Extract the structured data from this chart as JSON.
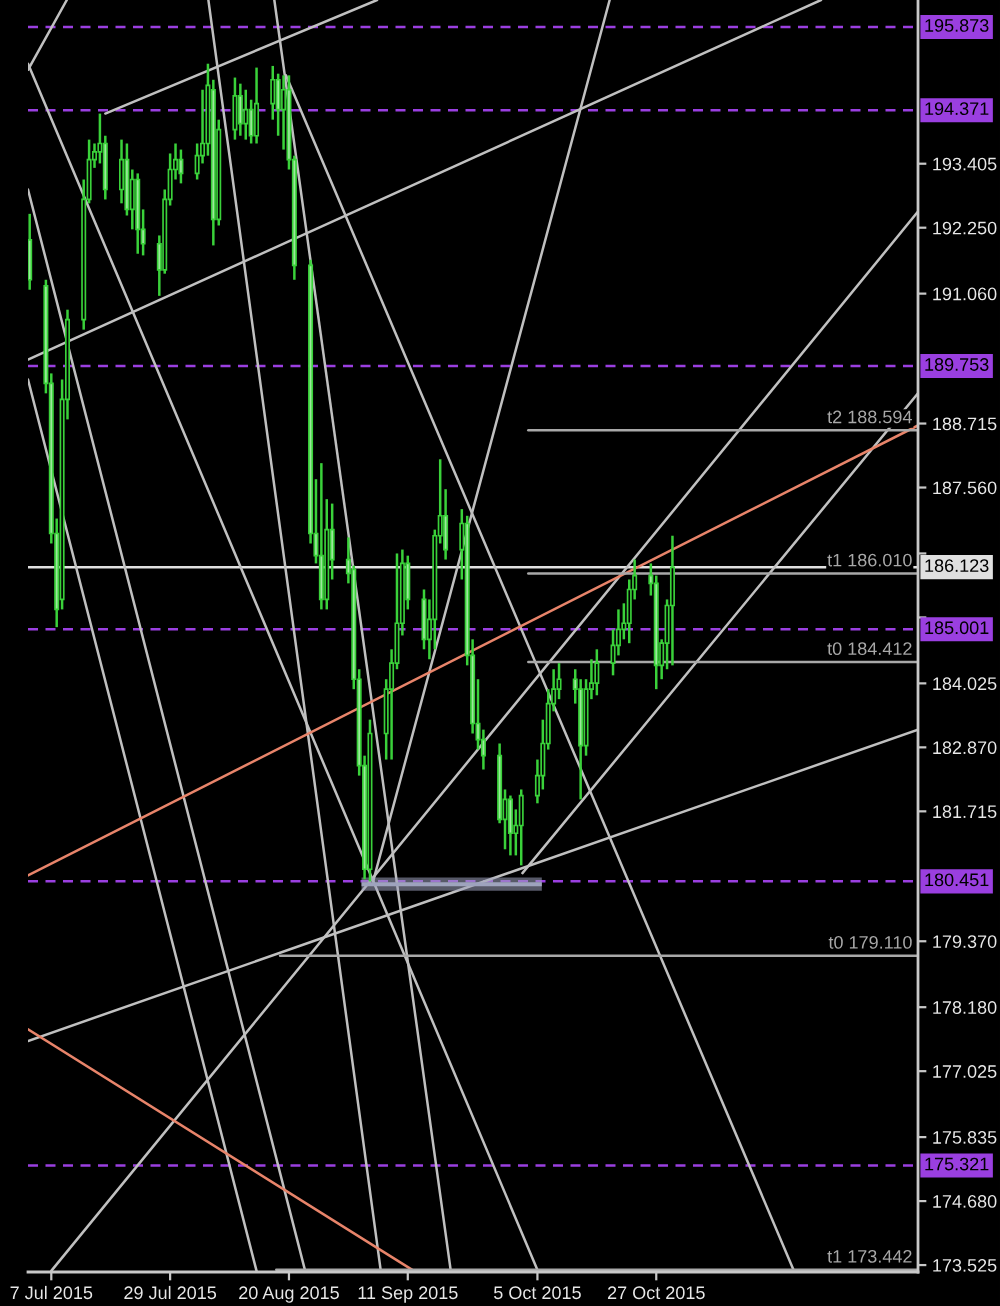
{
  "chart_data": {
    "type": "candlestick",
    "color": "#3ad13a",
    "x": [
      "2015-07-03",
      "2015-07-06",
      "2015-07-07",
      "2015-07-08",
      "2015-07-09",
      "2015-07-10",
      "2015-07-13",
      "2015-07-14",
      "2015-07-15",
      "2015-07-16",
      "2015-07-17",
      "2015-07-20",
      "2015-07-21",
      "2015-07-22",
      "2015-07-23",
      "2015-07-24",
      "2015-07-27",
      "2015-07-28",
      "2015-07-29",
      "2015-07-30",
      "2015-07-31",
      "2015-08-03",
      "2015-08-04",
      "2015-08-05",
      "2015-08-06",
      "2015-08-07",
      "2015-08-10",
      "2015-08-11",
      "2015-08-12",
      "2015-08-13",
      "2015-08-14",
      "2015-08-17",
      "2015-08-18",
      "2015-08-19",
      "2015-08-20",
      "2015-08-21",
      "2015-08-24",
      "2015-08-25",
      "2015-08-26",
      "2015-08-27",
      "2015-08-28",
      "2015-08-31",
      "2015-09-01",
      "2015-09-02",
      "2015-09-03",
      "2015-09-04",
      "2015-09-07",
      "2015-09-08",
      "2015-09-09",
      "2015-09-10",
      "2015-09-11",
      "2015-09-14",
      "2015-09-15",
      "2015-09-16",
      "2015-09-17",
      "2015-09-18",
      "2015-09-21",
      "2015-09-22",
      "2015-09-23",
      "2015-09-24",
      "2015-09-25",
      "2015-09-28",
      "2015-09-29",
      "2015-09-30",
      "2015-10-01",
      "2015-10-02",
      "2015-10-05",
      "2015-10-06",
      "2015-10-07",
      "2015-10-08",
      "2015-10-09",
      "2015-10-12",
      "2015-10-13",
      "2015-10-14",
      "2015-10-15",
      "2015-10-16",
      "2015-10-19",
      "2015-10-20",
      "2015-10-21",
      "2015-10-22",
      "2015-10-23",
      "2015-10-26",
      "2015-10-27",
      "2015-10-28",
      "2015-10-29",
      "2015-10-30"
    ],
    "ohlc": [
      [
        192.03,
        192.5,
        191.13,
        191.31
      ],
      [
        191.2,
        191.31,
        189.26,
        189.44
      ],
      [
        189.44,
        189.62,
        186.55,
        186.73
      ],
      [
        186.73,
        187.0,
        185.04,
        185.36
      ],
      [
        185.54,
        189.51,
        185.36,
        189.15
      ],
      [
        189.15,
        190.77,
        188.79,
        190.59
      ],
      [
        190.59,
        193.12,
        190.41,
        192.76
      ],
      [
        192.76,
        193.84,
        192.69,
        193.48
      ],
      [
        193.48,
        193.77,
        193.33,
        193.62
      ],
      [
        193.62,
        194.31,
        193.41,
        193.77
      ],
      [
        193.77,
        193.91,
        192.76,
        192.94
      ],
      [
        192.94,
        193.84,
        192.69,
        193.48
      ],
      [
        193.48,
        193.77,
        192.47,
        192.58
      ],
      [
        192.58,
        193.3,
        192.22,
        193.12
      ],
      [
        193.12,
        193.23,
        191.78,
        192.22
      ],
      [
        192.22,
        192.58,
        191.75,
        191.96
      ],
      [
        191.96,
        192.11,
        191.02,
        191.49
      ],
      [
        191.49,
        192.94,
        191.42,
        192.76
      ],
      [
        192.76,
        193.59,
        192.65,
        193.3
      ],
      [
        193.3,
        193.77,
        193.12,
        193.48
      ],
      [
        193.48,
        193.66,
        193.05,
        193.23
      ],
      [
        193.23,
        193.77,
        193.12,
        193.55
      ],
      [
        193.55,
        194.74,
        193.41,
        193.77
      ],
      [
        193.77,
        195.21,
        193.55,
        194.82
      ],
      [
        194.74,
        194.92,
        191.93,
        192.4
      ],
      [
        192.4,
        194.2,
        192.29,
        194.02
      ],
      [
        194.02,
        194.96,
        193.84,
        194.63
      ],
      [
        194.63,
        194.85,
        193.91,
        194.13
      ],
      [
        194.13,
        194.74,
        193.84,
        194.38
      ],
      [
        194.38,
        194.56,
        193.77,
        193.91
      ],
      [
        193.91,
        195.14,
        193.77,
        194.49
      ],
      [
        194.49,
        195.17,
        194.2,
        194.92
      ],
      [
        194.92,
        195.03,
        193.91,
        194.38
      ],
      [
        194.38,
        195.0,
        193.66,
        194.74
      ],
      [
        194.74,
        195.0,
        193.3,
        193.48
      ],
      [
        193.48,
        193.55,
        191.31,
        191.57
      ],
      [
        191.57,
        191.67,
        186.55,
        186.73
      ],
      [
        186.73,
        187.71,
        186.19,
        186.33
      ],
      [
        186.33,
        188.0,
        185.36,
        185.54
      ],
      [
        185.54,
        187.35,
        185.36,
        186.8
      ],
      [
        186.8,
        187.27,
        185.9,
        186.26
      ],
      [
        186.26,
        186.66,
        185.83,
        186.01
      ],
      [
        186.08,
        186.15,
        183.92,
        184.1
      ],
      [
        184.1,
        184.28,
        182.36,
        182.54
      ],
      [
        182.54,
        182.72,
        180.49,
        180.67
      ],
      [
        180.67,
        183.37,
        180.45,
        183.12
      ],
      [
        183.12,
        184.1,
        182.65,
        183.92
      ],
      [
        183.92,
        184.64,
        182.65,
        184.39
      ],
      [
        184.39,
        186.37,
        184.28,
        185.11
      ],
      [
        185.11,
        186.44,
        184.89,
        186.19
      ],
      [
        186.19,
        186.33,
        185.36,
        185.54
      ],
      [
        185.54,
        185.72,
        184.64,
        184.82
      ],
      [
        184.82,
        185.54,
        184.46,
        185.18
      ],
      [
        185.18,
        186.8,
        184.64,
        186.69
      ],
      [
        186.69,
        188.07,
        186.55,
        187.05
      ],
      [
        187.05,
        187.53,
        186.26,
        186.44
      ],
      [
        186.44,
        187.17,
        185.9,
        186.91
      ],
      [
        186.91,
        187.05,
        184.35,
        184.53
      ],
      [
        184.53,
        184.82,
        183.12,
        183.3
      ],
      [
        183.3,
        184.1,
        182.83,
        183.01
      ],
      [
        183.01,
        183.19,
        182.47,
        182.72
      ],
      [
        182.72,
        182.94,
        181.5,
        181.57
      ],
      [
        181.57,
        182.11,
        181.03,
        181.93
      ],
      [
        181.93,
        182.0,
        180.92,
        181.32
      ],
      [
        181.32,
        181.75,
        180.92,
        181.46
      ],
      [
        181.46,
        182.11,
        180.74,
        182.0
      ],
      [
        182.0,
        182.65,
        181.86,
        182.36
      ],
      [
        182.36,
        183.37,
        182.11,
        182.94
      ],
      [
        182.94,
        183.92,
        182.83,
        183.66
      ],
      [
        183.66,
        184.28,
        183.52,
        183.92
      ],
      [
        183.92,
        184.39,
        183.74,
        184.1
      ],
      [
        184.1,
        184.28,
        183.66,
        183.92
      ],
      [
        183.92,
        184.1,
        181.93,
        182.9
      ],
      [
        182.9,
        184.1,
        182.72,
        183.92
      ],
      [
        183.92,
        184.46,
        183.74,
        184.03
      ],
      [
        184.03,
        184.64,
        183.81,
        184.39
      ],
      [
        184.39,
        185.0,
        184.17,
        184.71
      ],
      [
        184.71,
        185.36,
        184.53,
        185.0
      ],
      [
        185.0,
        185.47,
        184.82,
        185.11
      ],
      [
        185.11,
        185.9,
        184.75,
        185.72
      ],
      [
        185.72,
        186.26,
        185.54,
        185.97
      ],
      [
        185.97,
        186.19,
        185.61,
        185.83
      ],
      [
        185.83,
        185.97,
        183.92,
        184.35
      ],
      [
        184.35,
        184.82,
        184.1,
        184.75
      ],
      [
        184.75,
        185.54,
        184.28,
        185.43
      ],
      [
        185.43,
        186.69,
        184.35,
        186.12
      ]
    ],
    "series": [
      {
        "type": "line",
        "x": [
          "2015-07-02T16:30",
          "2015-07-09T21:00"
        ],
        "values": [
          195.1,
          196.36
        ],
        "color": "#c0c0c0"
      },
      {
        "type": "line",
        "x": [
          "2015-07-02T16:30",
          "2015-10-05T02:00"
        ],
        "values": [
          195.21,
          173.42
        ],
        "color": "#c0c0c0"
      },
      {
        "type": "line",
        "x": [
          "2015-07-02T16:30",
          "2015-08-23"
        ],
        "values": [
          192.94,
          173.42
        ],
        "color": "#c0c0c0"
      },
      {
        "type": "line",
        "x": [
          "2015-07-02T16:30",
          "2015-08-14"
        ],
        "values": [
          189.51,
          173.42
        ],
        "color": "#c0c0c0"
      },
      {
        "type": "line",
        "x": [
          "2015-08-05T02:00",
          "2015-09-06"
        ],
        "values": [
          196.36,
          173.42
        ],
        "color": "#c0c0c0"
      },
      {
        "type": "line",
        "x": [
          "2015-08-19T10:30",
          "2015-11-21T12:00"
        ],
        "values": [
          195.0,
          173.42
        ],
        "color": "#c0c0c0"
      },
      {
        "type": "line",
        "x": [
          "2015-08-17T07:00",
          "2015-09-18T23:00"
        ],
        "values": [
          196.36,
          173.42
        ],
        "color": "#c0c0c0"
      },
      {
        "type": "line",
        "x": [
          "2015-09-04T14:00",
          "2015-10-18T09:00"
        ],
        "values": [
          180.45,
          196.36
        ],
        "color": "#c0c0c0"
      },
      {
        "type": "line",
        "x": [
          "2015-07-07",
          "2015-12-14T11:00"
        ],
        "values": [
          173.42,
          192.54
        ],
        "color": "#c0c0c0"
      },
      {
        "type": "line",
        "x": [
          "2015-10-02T05:30",
          "2015-12-14T11:00"
        ],
        "values": [
          180.6,
          189.26
        ],
        "color": "#c0c0c0"
      },
      {
        "type": "line",
        "x": [
          "2015-07-17",
          "2015-09-05T07:30"
        ],
        "values": [
          194.31,
          196.36
        ],
        "color": "#c0c0c0"
      },
      {
        "type": "line",
        "x": [
          "2015-07-02T16:30",
          "2015-11-26T12:00"
        ],
        "values": [
          189.87,
          196.36
        ],
        "color": "#c0c0c0"
      },
      {
        "type": "line",
        "x": [
          "2015-07-02T16:30",
          "2015-12-14T11:00"
        ],
        "values": [
          177.57,
          183.19
        ],
        "color": "#c0c0c0"
      },
      {
        "type": "line",
        "x": [
          "2015-07-02T16:30",
          "2015-12-14T11:00"
        ],
        "values": [
          180.56,
          188.68
        ],
        "color": "#e8846a"
      },
      {
        "type": "line",
        "x": [
          "2015-07-02T16:30",
          "2015-09-12T03:00"
        ],
        "values": [
          177.78,
          173.42
        ],
        "color": "#e8846a"
      },
      {
        "type": "line",
        "name": "t2 188.594",
        "x": [
          "2015-10-03T07:30",
          "2015-12-14T11:00"
        ],
        "values": [
          188.594,
          188.594
        ],
        "color": "#a8a8a8"
      },
      {
        "type": "line",
        "name": "t1 186.010",
        "x": [
          "2015-10-03T07:30",
          "2015-12-14T11:00"
        ],
        "values": [
          186.01,
          186.01
        ],
        "color": "#a8a8a8"
      },
      {
        "type": "line",
        "name": "t0 184.412",
        "x": [
          "2015-10-03T07:30",
          "2015-12-14T11:00"
        ],
        "values": [
          184.412,
          184.412
        ],
        "color": "#a8a8a8"
      },
      {
        "type": "line",
        "name": "t0 179.110",
        "x": [
          "2015-08-18T08:30",
          "2015-12-14T11:00"
        ],
        "values": [
          179.11,
          179.11
        ],
        "color": "#a8a8a8"
      },
      {
        "type": "line",
        "name": "t1 173.442",
        "x": [
          "2015-08-17T15:30",
          "2015-12-14T11:00"
        ],
        "values": [
          173.442,
          173.442
        ],
        "color": "#a8a8a8"
      },
      {
        "type": "line",
        "x": [
          "2015-09-02T10:30",
          "2015-10-05T19:30"
        ],
        "values": [
          180.4,
          180.4
        ],
        "lower": [
          180.28,
          180.28
        ],
        "upper": [
          180.52,
          180.52
        ],
        "color": "#9ea3bd"
      }
    ],
    "ref_lines": [
      {
        "axis": "y",
        "value": 195.873,
        "label": "195.873",
        "color": "#9a3fe0",
        "line_style": "dashed"
      },
      {
        "axis": "y",
        "value": 194.371,
        "label": "194.371",
        "color": "#9a3fe0",
        "line_style": "dashed"
      },
      {
        "axis": "y",
        "value": 189.753,
        "label": "189.753",
        "color": "#9a3fe0",
        "line_style": "dashed"
      },
      {
        "axis": "y",
        "value": 185.001,
        "label": "185.001",
        "color": "#9a3fe0",
        "line_style": "dashed"
      },
      {
        "axis": "y",
        "value": 180.451,
        "label": "180.451",
        "color": "#9a3fe0",
        "line_style": "dashed"
      },
      {
        "axis": "y",
        "value": 175.321,
        "label": "175.321",
        "color": "#9a3fe0",
        "line_style": "dashed"
      },
      {
        "axis": "y",
        "value": 186.123,
        "label": "186.123",
        "color": "#e0e0e0",
        "line_style": "solid"
      }
    ],
    "xlim": [
      "2015-07-02T16:30",
      "2015-12-14T11:00"
    ],
    "xticks": [
      {
        "value": "2015-07-07",
        "label": "7 Jul 2015"
      },
      {
        "value": "2015-07-29",
        "label": "29 Jul 2015"
      },
      {
        "value": "2015-08-20",
        "label": "20 Aug 2015"
      },
      {
        "value": "2015-09-11",
        "label": "11 Sep 2015"
      },
      {
        "value": "2015-10-05",
        "label": "5 Oct 2015"
      },
      {
        "value": "2015-10-27",
        "label": "27 Oct 2015"
      }
    ],
    "ylim": [
      173.4,
      196.36
    ],
    "yticks": [
      193.405,
      {
        "value": 192.25,
        "label": "192.250"
      },
      {
        "value": 191.06,
        "label": "191.060"
      },
      188.715,
      {
        "value": 187.56,
        "label": "187.560"
      },
      {
        "value": 186.37,
        "label": null
      },
      {
        "value": 185.215,
        "label": null
      },
      184.025,
      {
        "value": 182.87,
        "label": "182.870"
      },
      181.715,
      {
        "value": 179.37,
        "label": "179.370"
      },
      {
        "value": 178.18,
        "label": "178.180"
      },
      177.025,
      175.835,
      {
        "value": 174.68,
        "label": "174.680"
      },
      173.525
    ]
  }
}
